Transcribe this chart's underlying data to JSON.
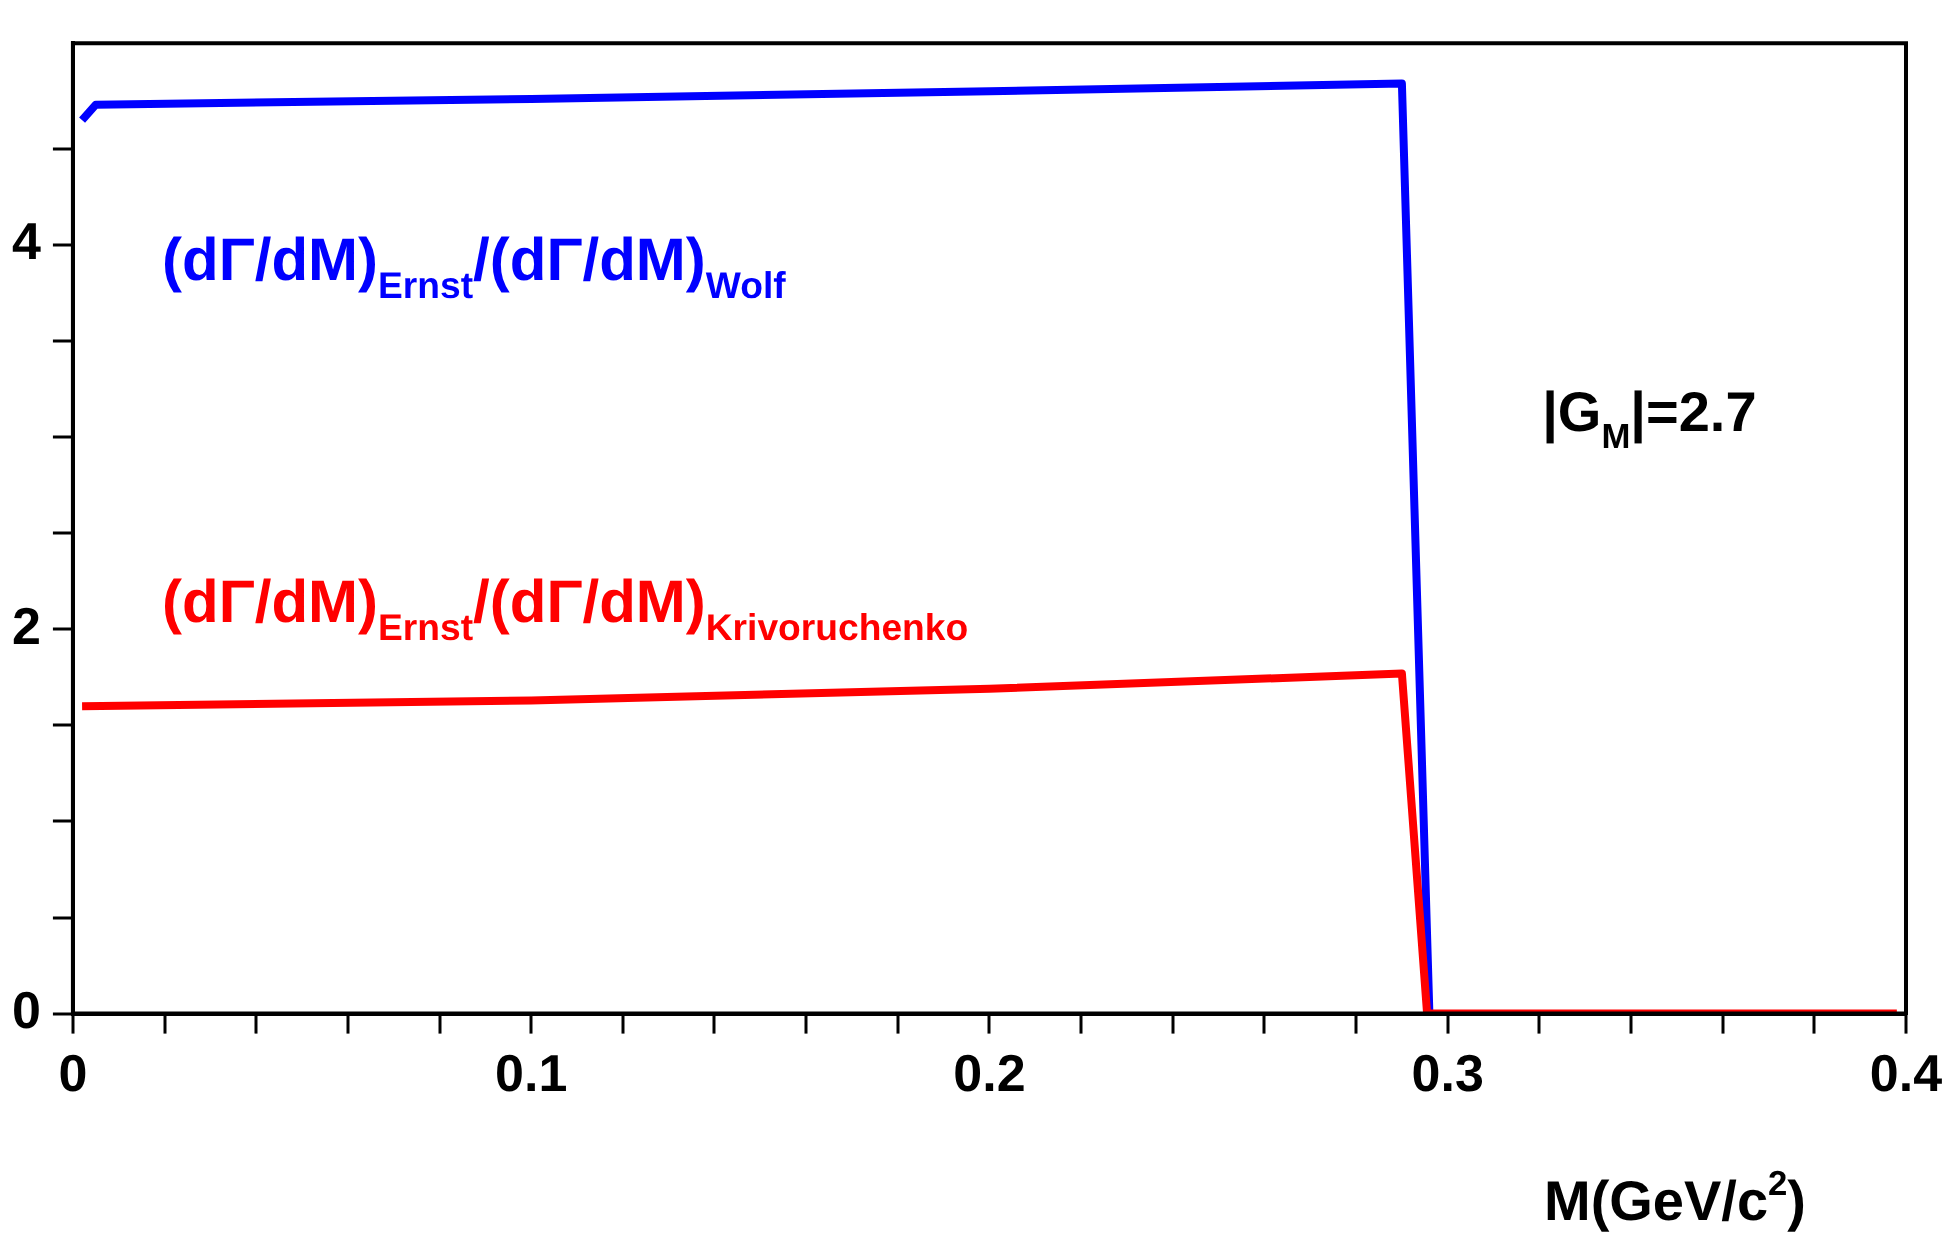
{
  "chart_data": {
    "type": "line",
    "xlabel": "M(GeV/c$^{2}$)",
    "xlim": [
      0,
      0.4
    ],
    "ylim": [
      0,
      5.05
    ],
    "xticks": [
      0,
      {
        "value": 0.02,
        "label": null
      },
      {
        "value": 0.04,
        "label": null
      },
      {
        "value": 0.06,
        "label": null
      },
      {
        "value": 0.08,
        "label": null
      },
      0.1,
      {
        "value": 0.12,
        "label": null
      },
      {
        "value": 0.14,
        "label": null
      },
      {
        "value": 0.16,
        "label": null
      },
      {
        "value": 0.18,
        "label": null
      },
      0.2,
      {
        "value": 0.22,
        "label": null
      },
      {
        "value": 0.24,
        "label": null
      },
      {
        "value": 0.26,
        "label": null
      },
      {
        "value": 0.28,
        "label": null
      },
      0.3,
      {
        "value": 0.32,
        "label": null
      },
      {
        "value": 0.34,
        "label": null
      },
      {
        "value": 0.36,
        "label": null
      },
      {
        "value": 0.38,
        "label": null
      },
      0.4
    ],
    "yticks": [
      0,
      {
        "value": 0.5,
        "label": null
      },
      {
        "value": 1,
        "label": null
      },
      {
        "value": 1.5,
        "label": null
      },
      2,
      {
        "value": 2.5,
        "label": null
      },
      {
        "value": 3,
        "label": null
      },
      {
        "value": 3.5,
        "label": null
      },
      4,
      {
        "value": 4.5,
        "label": null
      }
    ],
    "series": [
      {
        "name": "(dΓ/dM)$_{Ernst}$/(dΓ/dM)$_{Wolf}$",
        "color": "#0000ff",
        "x": [
          0.002,
          0.005,
          0.1,
          0.2,
          0.29,
          0.296
        ],
        "values": [
          4.65,
          4.73,
          4.76,
          4.8,
          4.84,
          0
        ]
      },
      {
        "name": "(dΓ/dM)$_{Ernst}$/(dΓ/dM)$_{Krivoruchenko}$",
        "color": "#ff0000",
        "x": [
          0.002,
          0.1,
          0.2,
          0.29,
          0.2955,
          0.398
        ],
        "values": [
          1.6,
          1.63,
          1.69,
          1.77,
          0,
          0
        ]
      }
    ],
    "annotations": [
      "|G$_{M}$|=2.7"
    ],
    "grid": false,
    "legend": false,
    "marker": "none",
    "line_style": "solid"
  }
}
